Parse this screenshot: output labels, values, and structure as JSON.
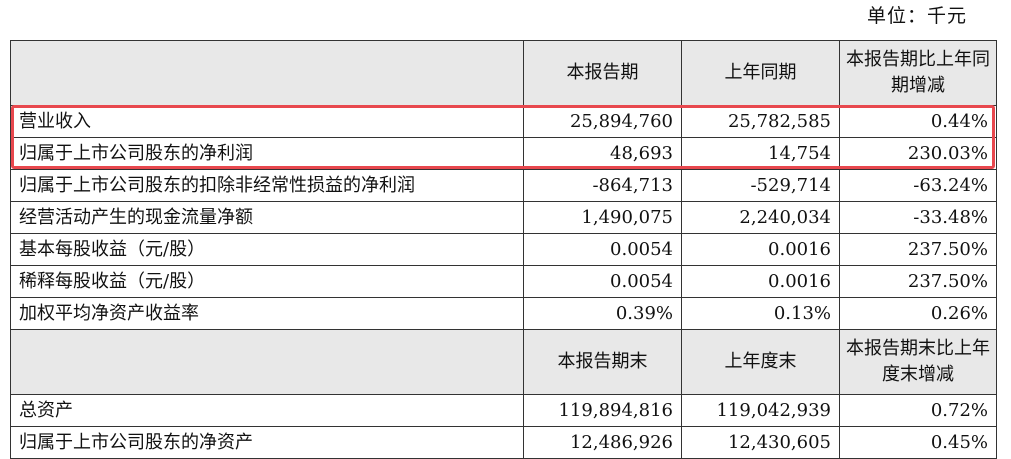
{
  "unit_label": "单位：千元",
  "header1": {
    "col1": "本报告期",
    "col2": "上年同期",
    "col3": "本报告期比上年同期增减"
  },
  "rows1": [
    {
      "label": "营业收入",
      "current": "25,894,760",
      "prior": "25,782,585",
      "change": "0.44%"
    },
    {
      "label": "归属于上市公司股东的净利润",
      "current": "48,693",
      "prior": "14,754",
      "change": "230.03%"
    },
    {
      "label": "归属于上市公司股东的扣除非经常性损益的净利润",
      "current": "-864,713",
      "prior": "-529,714",
      "change": "-63.24%"
    },
    {
      "label": "经营活动产生的现金流量净额",
      "current": "1,490,075",
      "prior": "2,240,034",
      "change": "-33.48%"
    },
    {
      "label": "基本每股收益（元/股）",
      "current": "0.0054",
      "prior": "0.0016",
      "change": "237.50%"
    },
    {
      "label": "稀释每股收益（元/股）",
      "current": "0.0054",
      "prior": "0.0016",
      "change": "237.50%"
    },
    {
      "label": "加权平均净资产收益率",
      "current": "0.39%",
      "prior": "0.13%",
      "change": "0.26%"
    }
  ],
  "header2": {
    "col1": "本报告期末",
    "col2": "上年度末",
    "col3": "本报告期末比上年度末增减"
  },
  "rows2": [
    {
      "label": "总资产",
      "current": "119,894,816",
      "prior": "119,042,939",
      "change": "0.72%"
    },
    {
      "label": "归属于上市公司股东的净资产",
      "current": "12,486,926",
      "prior": "12,430,605",
      "change": "0.45%"
    }
  ],
  "highlight_color": "#e8484e"
}
